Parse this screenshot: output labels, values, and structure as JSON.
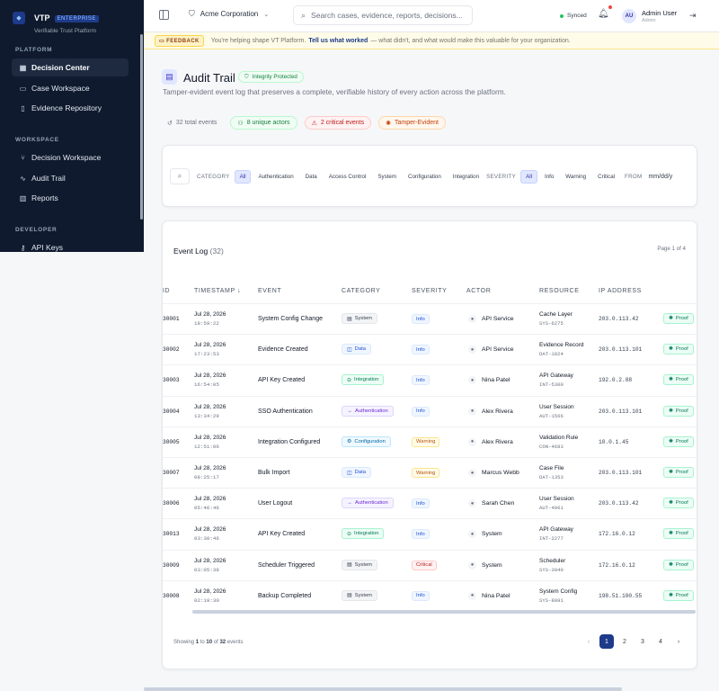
{
  "sidebar": {
    "brand": {
      "name": "VTP",
      "badge": "ENTERPRISE",
      "subtitle": "Verifiable Trust Platform"
    },
    "sections": [
      {
        "title": "PLATFORM",
        "items": [
          {
            "label": "Decision Center",
            "icon": "grid-icon",
            "active": true
          },
          {
            "label": "Case Workspace",
            "icon": "briefcase-icon"
          },
          {
            "label": "Evidence Repository",
            "icon": "file-icon"
          }
        ]
      },
      {
        "title": "WORKSPACE",
        "items": [
          {
            "label": "Decision Workspace",
            "icon": "git-branch-icon"
          },
          {
            "label": "Audit Trail",
            "icon": "activity-icon"
          },
          {
            "label": "Reports",
            "icon": "bar-chart-icon"
          }
        ]
      },
      {
        "title": "DEVELOPER",
        "items": [
          {
            "label": "API Keys",
            "icon": "key-icon"
          }
        ]
      }
    ]
  },
  "topbar": {
    "org": "Acme Corporation",
    "search_placeholder": "Search cases, evidence, reports, decisions...",
    "sync_status": "Synced",
    "user": {
      "initials": "AU",
      "name": "Admin User",
      "role": "Admin"
    }
  },
  "feedback": {
    "tag": "FEEDBACK",
    "text_before": "You're helping shape VT Platform.",
    "link": "Tell us what worked",
    "text_after": "— what didn't, and what would make this valuable for your organization."
  },
  "page": {
    "title": "Audit Trail",
    "integrity_badge": "Integrity Protected",
    "description": "Tamper-evident event log that preserves a complete, verifiable history of every action across the platform.",
    "stats": [
      "32 total events",
      "8 unique actors",
      "2 critical events",
      "Tamper-Evident"
    ]
  },
  "filters": {
    "category_label": "CATEGORY",
    "categories": [
      "All",
      "Authentication",
      "Data",
      "Access Control",
      "System",
      "Configuration",
      "Integration"
    ],
    "severity_label": "SEVERITY",
    "severities": [
      "All",
      "Info",
      "Warning",
      "Critical"
    ],
    "from_label": "FROM",
    "date_placeholder": "mm/dd/y"
  },
  "log": {
    "title": "Event Log",
    "count": "(32)",
    "page_info": "Page 1 of 4",
    "columns": [
      "ID",
      "TIMESTAMP",
      "EVENT",
      "CATEGORY",
      "SEVERITY",
      "ACTOR",
      "RESOURCE",
      "IP ADDRESS"
    ],
    "rows": [
      {
        "id": "30001",
        "date": "Jul 28, 2026",
        "time": "18:59:22",
        "event": "System Config Change",
        "category": "System",
        "severity": "Info",
        "actor": "API Service",
        "resource": "Cache Layer",
        "resource_id": "SYS-6275",
        "ip": "203.0.113.42",
        "proof": "Proof"
      },
      {
        "id": "30002",
        "date": "Jul 28, 2026",
        "time": "17:23:53",
        "event": "Evidence Created",
        "category": "Data",
        "severity": "Info",
        "actor": "API Service",
        "resource": "Evidence Record",
        "resource_id": "DAT-1824",
        "ip": "203.0.113.101",
        "proof": "Proof"
      },
      {
        "id": "30003",
        "date": "Jul 28, 2026",
        "time": "16:54:05",
        "event": "API Key Created",
        "category": "Integration",
        "severity": "Info",
        "actor": "Nina Patel",
        "resource": "API Gateway",
        "resource_id": "INT-5300",
        "ip": "192.0.2.88",
        "proof": "Proof"
      },
      {
        "id": "30004",
        "date": "Jul 28, 2026",
        "time": "13:34:29",
        "event": "SSO Authentication",
        "category": "Authentication",
        "severity": "Info",
        "actor": "Alex Rivera",
        "resource": "User Session",
        "resource_id": "AUT-1566",
        "ip": "203.0.113.101",
        "proof": "Proof"
      },
      {
        "id": "30005",
        "date": "Jul 28, 2026",
        "time": "12:51:06",
        "event": "Integration Configured",
        "category": "Configuration",
        "severity": "Warning",
        "actor": "Alex Rivera",
        "resource": "Validation Rule",
        "resource_id": "CON-4683",
        "ip": "10.0.1.45",
        "proof": "Proof"
      },
      {
        "id": "30007",
        "date": "Jul 28, 2026",
        "time": "08:25:17",
        "event": "Bulk Import",
        "category": "Data",
        "severity": "Warning",
        "actor": "Marcus Webb",
        "resource": "Case File",
        "resource_id": "DAT-1353",
        "ip": "203.0.113.101",
        "proof": "Proof"
      },
      {
        "id": "30006",
        "date": "Jul 28, 2026",
        "time": "05:46:46",
        "event": "User Logout",
        "category": "Authentication",
        "severity": "Info",
        "actor": "Sarah Chen",
        "resource": "User Session",
        "resource_id": "AUT-4961",
        "ip": "203.0.113.42",
        "proof": "Proof"
      },
      {
        "id": "30013",
        "date": "Jul 28, 2026",
        "time": "03:30:46",
        "event": "API Key Created",
        "category": "Integration",
        "severity": "Info",
        "actor": "System",
        "resource": "API Gateway",
        "resource_id": "INT-2277",
        "ip": "172.16.0.12",
        "proof": "Proof"
      },
      {
        "id": "30009",
        "date": "Jul 28, 2026",
        "time": "03:05:38",
        "event": "Scheduler Triggered",
        "category": "System",
        "severity": "Critical",
        "actor": "System",
        "resource": "Scheduler",
        "resource_id": "SYS-3040",
        "ip": "172.16.0.12",
        "proof": "Proof"
      },
      {
        "id": "30008",
        "date": "Jul 28, 2026",
        "time": "02:19:30",
        "event": "Backup Completed",
        "category": "System",
        "severity": "Info",
        "actor": "Nina Patel",
        "resource": "System Config",
        "resource_id": "SYS-8091",
        "ip": "198.51.100.55",
        "proof": "Proof"
      }
    ],
    "showing": {
      "prefix": "Showing",
      "from": "1",
      "to_word": "to",
      "to": "10",
      "of_word": "of",
      "total": "32",
      "suffix": "events"
    },
    "pages": [
      "1",
      "2",
      "3",
      "4"
    ],
    "current_page": "1"
  },
  "colors": {
    "sidebar_bg": "#0f1a2e",
    "accent": "#1e3a8a",
    "success": "#047857",
    "critical": "#b91c1c",
    "warning": "#b45309"
  }
}
